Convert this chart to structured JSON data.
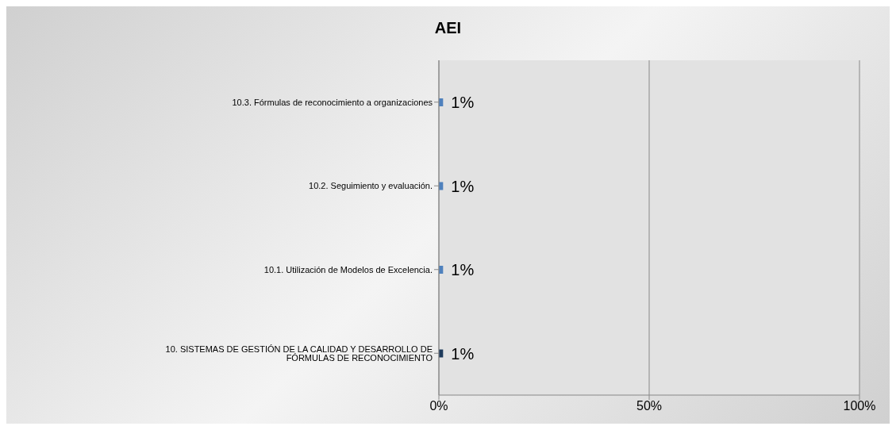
{
  "chart_data": {
    "type": "bar",
    "orientation": "horizontal",
    "title": "AEI",
    "categories": [
      "10.3. Fórmulas de reconocimiento a organizaciones",
      "10.2. Seguimiento y evaluación.",
      "10.1. Utilización de Modelos de Excelencia.",
      "10. SISTEMAS DE GESTIÓN DE LA CALIDAD Y DESARROLLO DE FÓRMULAS DE RECONOCIMIENTO"
    ],
    "values": [
      1,
      1,
      1,
      1
    ],
    "colors": [
      "#4f81bd",
      "#4f81bd",
      "#4f81bd",
      "#1f3b5c"
    ],
    "value_labels": [
      "1%",
      "1%",
      "1%",
      "1%"
    ],
    "xlim": [
      0,
      100
    ],
    "xticks": [
      {
        "value": 0,
        "label": "0%"
      },
      {
        "value": 50,
        "label": "50%"
      },
      {
        "value": 100,
        "label": "100%"
      }
    ],
    "grid": "x"
  }
}
